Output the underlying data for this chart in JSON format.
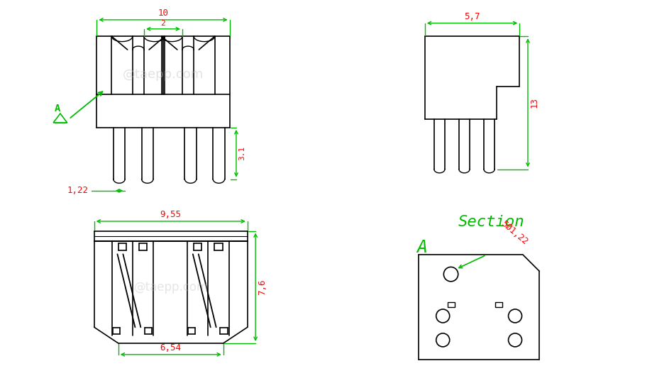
{
  "bg_color": "#ffffff",
  "line_color": "#000000",
  "dim_color": "#00bb00",
  "text_color": "#ff0000",
  "watermark_text": "@taepp.com",
  "section_text": "Section",
  "section_a": "A",
  "dim_10": "10",
  "dim_2": "2",
  "dim_31": "3.1",
  "dim_122": "1,22",
  "dim_57": "5,7",
  "dim_13": "13",
  "dim_955": "9,55",
  "dim_76": "7,6",
  "dim_654": "6,54",
  "dim_section": "5Ø1,22"
}
